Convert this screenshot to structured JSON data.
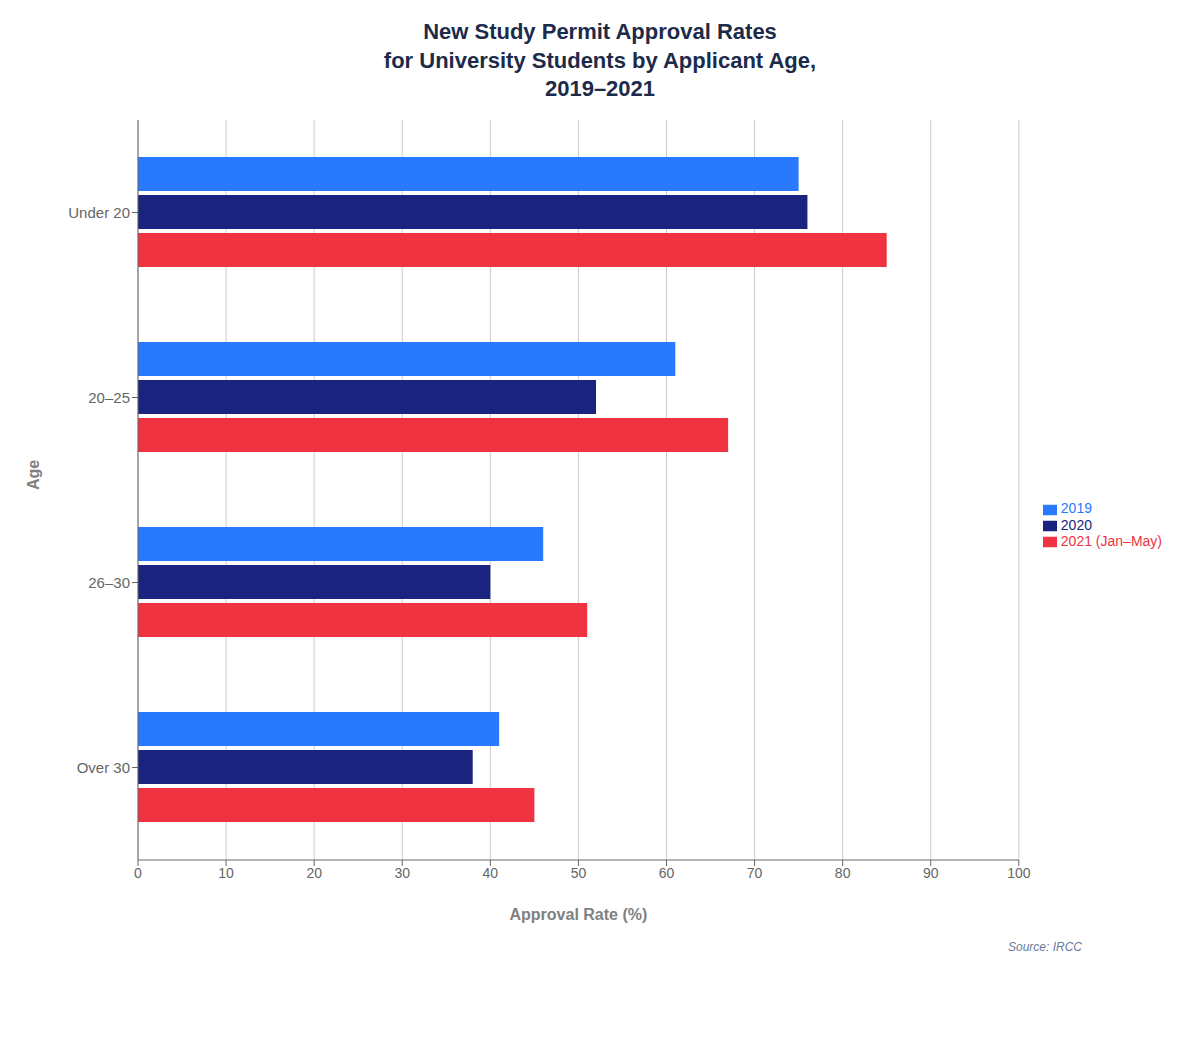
{
  "chart_data": {
    "type": "bar",
    "orientation": "horizontal",
    "title": "New Study Permit Approval Rates\nfor University Students by Applicant Age,\n2019–2021",
    "categories": [
      "Under 20",
      "20–25",
      "26–30",
      "Over 30"
    ],
    "series": [
      {
        "name": "2019",
        "color": "#2979FF",
        "values": [
          75,
          61,
          46,
          41
        ]
      },
      {
        "name": "2020",
        "color": "#1A237E",
        "values": [
          76,
          52,
          40,
          38
        ]
      },
      {
        "name": "2021 (Jan–May)",
        "color": "#EF3340",
        "values": [
          85,
          67,
          51,
          45
        ]
      }
    ],
    "xlabel": "Approval Rate (%)",
    "ylabel": "Age",
    "xlim": [
      0,
      100
    ],
    "xticks": [
      0,
      10,
      20,
      30,
      40,
      50,
      60,
      70,
      80,
      90,
      100
    ],
    "grid": true,
    "legend": "right",
    "annotations": [
      "Source: IRCC"
    ]
  }
}
